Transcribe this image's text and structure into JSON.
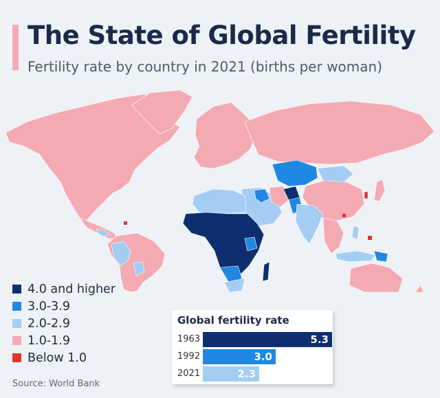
{
  "title": "The State of Global Fertility",
  "subtitle": "Fertility rate by country in 2021 (births per woman)",
  "colors": {
    "dark": "#0f2e70",
    "mid": "#1f88e3",
    "light": "#a3cdf3",
    "pink": "#f4aab3",
    "red": "#e0352d",
    "ocean": "#eef2f6"
  },
  "legend": [
    {
      "label": "4.0 and higher",
      "color": "#0f2e70"
    },
    {
      "label": "3.0-3.9",
      "color": "#1f88e3"
    },
    {
      "label": "2.0-2.9",
      "color": "#a3cdf3"
    },
    {
      "label": "1.0-1.9",
      "color": "#f4aab3"
    },
    {
      "label": "Below 1.0",
      "color": "#e0352d"
    }
  ],
  "source": "Source: World Bank",
  "panel": {
    "title": "Global fertility rate",
    "rows": [
      {
        "year": "1963",
        "value": "5.3",
        "value_num": 5.3,
        "color": "#0f2e70"
      },
      {
        "year": "1992",
        "value": "3.0",
        "value_num": 3.0,
        "color": "#1f88e3"
      },
      {
        "year": "2021",
        "value": "2.3",
        "value_num": 2.3,
        "color": "#a3cdf3"
      }
    ]
  }
}
